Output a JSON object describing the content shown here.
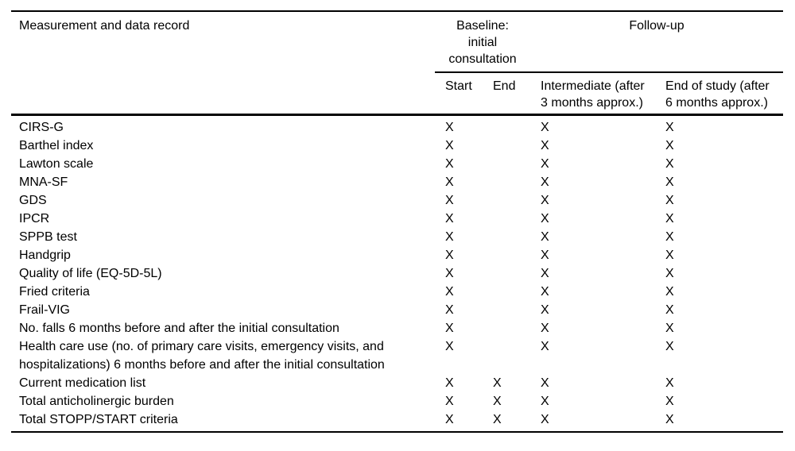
{
  "colors": {
    "background": "#ffffff",
    "text": "#000000",
    "rule": "#000000"
  },
  "table": {
    "col1_header": "Measurement and data record",
    "group_headers": [
      {
        "label": "Baseline:\ninitial\nconsultation"
      },
      {
        "label": "Follow-up"
      }
    ],
    "sub_headers": [
      "Start",
      "End",
      "Intermediate (after\n3 months approx.)",
      "End of study (after\n6 months approx.)"
    ],
    "rows": [
      {
        "label": "CIRS-G",
        "marks": [
          "X",
          "",
          "X",
          "X"
        ]
      },
      {
        "label": "Barthel index",
        "marks": [
          "X",
          "",
          "X",
          "X"
        ]
      },
      {
        "label": "Lawton scale",
        "marks": [
          "X",
          "",
          "X",
          "X"
        ]
      },
      {
        "label": "MNA-SF",
        "marks": [
          "X",
          "",
          "X",
          "X"
        ]
      },
      {
        "label": "GDS",
        "marks": [
          "X",
          "",
          "X",
          "X"
        ]
      },
      {
        "label": "IPCR",
        "marks": [
          "X",
          "",
          "X",
          "X"
        ]
      },
      {
        "label": "SPPB test",
        "marks": [
          "X",
          "",
          "X",
          "X"
        ]
      },
      {
        "label": "Handgrip",
        "marks": [
          "X",
          "",
          "X",
          "X"
        ]
      },
      {
        "label": "Quality of life (EQ-5D-5L)",
        "marks": [
          "X",
          "",
          "X",
          "X"
        ]
      },
      {
        "label": "Fried criteria",
        "marks": [
          "X",
          "",
          "X",
          "X"
        ]
      },
      {
        "label": "Frail-VIG",
        "marks": [
          "X",
          "",
          "X",
          "X"
        ]
      },
      {
        "label": "No. falls 6 months before and after the initial consultation",
        "marks": [
          "X",
          "",
          "X",
          "X"
        ]
      },
      {
        "label": "Health care use (no. of primary care visits, emergency visits, and\nhospitalizations) 6 months before and after the initial consultation",
        "marks": [
          "X",
          "",
          "X",
          "X"
        ]
      },
      {
        "label": "Current medication list",
        "marks": [
          "X",
          "X",
          "X",
          "X"
        ]
      },
      {
        "label": "Total anticholinergic burden",
        "marks": [
          "X",
          "X",
          "X",
          "X"
        ]
      },
      {
        "label": "Total STOPP/START criteria",
        "marks": [
          "X",
          "X",
          "X",
          "X"
        ]
      }
    ]
  }
}
